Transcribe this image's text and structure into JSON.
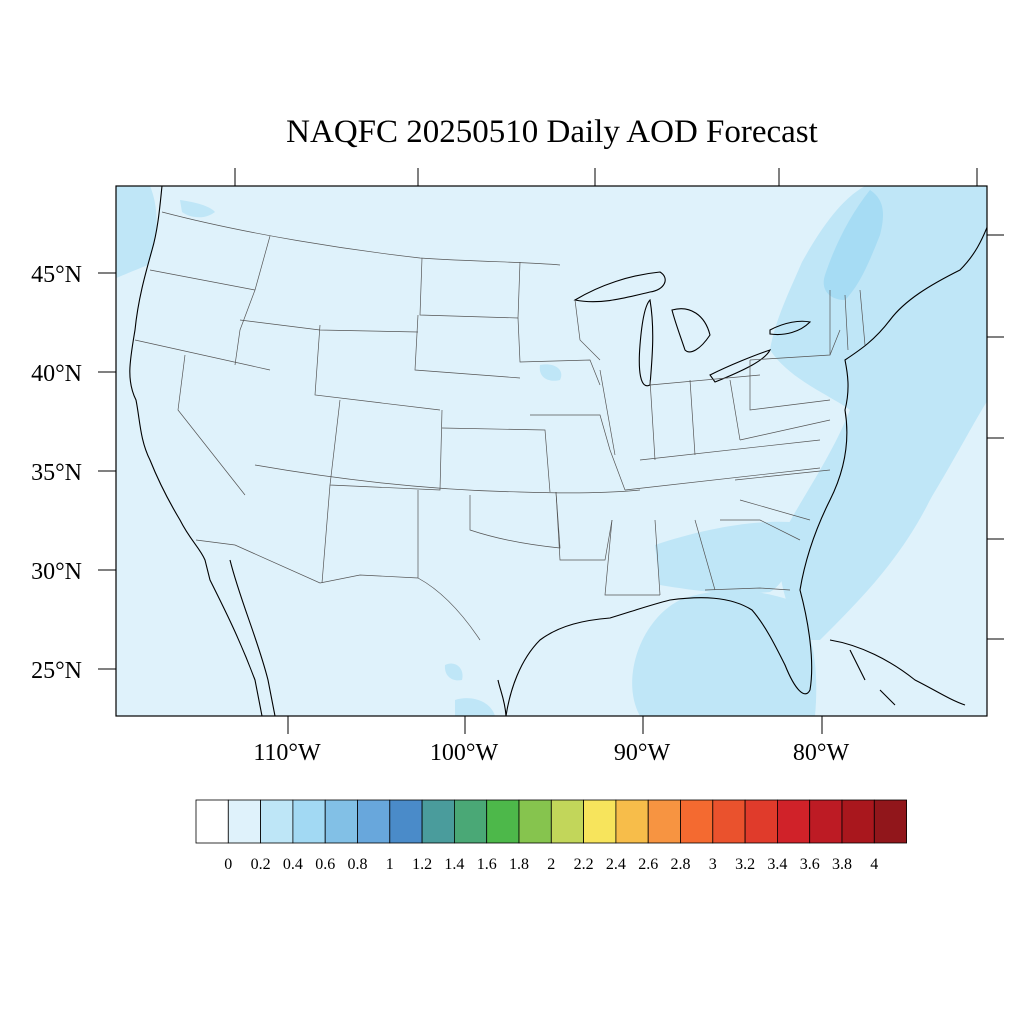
{
  "title": "NAQFC 20250510 Daily AOD Forecast",
  "map": {
    "region": "Contiguous United States",
    "projection": "Lambert conformal",
    "field": "AOD",
    "lat_labels": [
      "45°N",
      "40°N",
      "35°N",
      "30°N",
      "25°N"
    ],
    "lon_labels": [
      "110°W",
      "100°W",
      "90°W",
      "80°W"
    ],
    "field_colors": {
      "background_0_to_0_2": "#dff2fb",
      "band_0_2_to_0_4": "#bfe6f7",
      "band_0_4_to_0_6": "#a6dcf4"
    },
    "boundary_color": "#000000",
    "state_line_color": "#555555"
  },
  "colorbar": {
    "labels": [
      "0",
      "0.2",
      "0.4",
      "0.6",
      "0.8",
      "1",
      "1.2",
      "1.4",
      "1.6",
      "1.8",
      "2",
      "2.2",
      "2.4",
      "2.6",
      "2.8",
      "3",
      "3.2",
      "3.4",
      "3.6",
      "3.8",
      "4"
    ],
    "colors": [
      "#ffffff",
      "#dff2fb",
      "#bee6f7",
      "#a2d9f3",
      "#82c0e6",
      "#68a7dc",
      "#4a8bc9",
      "#4a9c9c",
      "#4aa876",
      "#4db84a",
      "#86c44e",
      "#c2d65a",
      "#f7e45c",
      "#f7bd4a",
      "#f79441",
      "#f46a30",
      "#ea522d",
      "#e03b2b",
      "#d02229",
      "#bd1b24",
      "#a9171d",
      "#91161b"
    ]
  }
}
